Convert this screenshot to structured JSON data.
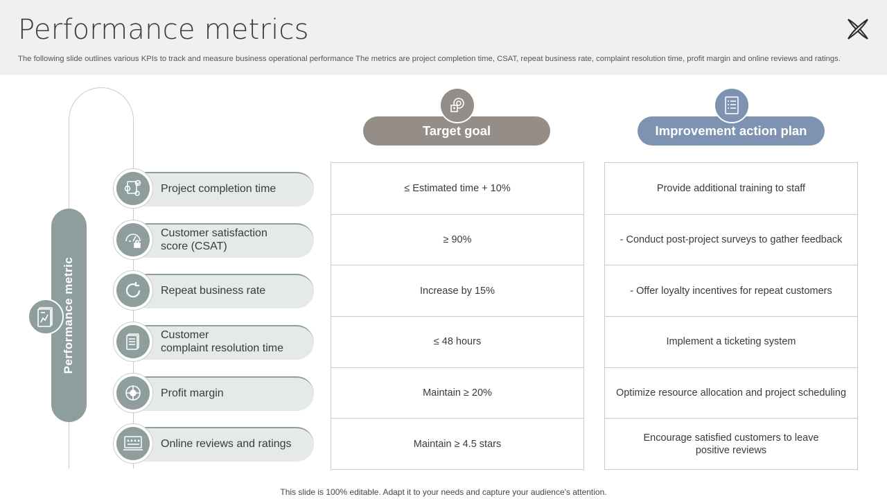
{
  "header": {
    "title": "Performance metrics",
    "subtitle": "The following slide outlines various KPIs to track and measure business operational performance The metrics are project completion time, CSAT, repeat business rate, complaint resolution time, profit margin and online reviews and ratings."
  },
  "side": {
    "label": "Performance metric",
    "icon": "chart-document-icon"
  },
  "metrics": [
    {
      "label": "Project completion time",
      "icon": "project-gears-icon"
    },
    {
      "label": "Customer satisfaction\nscore (CSAT)",
      "icon": "satisfaction-meter-icon"
    },
    {
      "label": "Repeat business rate",
      "icon": "refresh-icon"
    },
    {
      "label": "Customer\ncomplaint resolution time",
      "icon": "document-stack-icon"
    },
    {
      "label": "Profit margin",
      "icon": "profit-pie-icon"
    },
    {
      "label": "Online reviews and ratings",
      "icon": "rating-stars-icon"
    }
  ],
  "target": {
    "header": "Target goal",
    "icon": "target-goal-icon",
    "rows": [
      "≤ Estimated time + 10%",
      "≥ 90%",
      "Increase by 15%",
      "≤ 48 hours",
      "Maintain ≥ 20%",
      "Maintain ≥ 4.5 stars"
    ]
  },
  "plan": {
    "header": "Improvement action plan",
    "icon": "checklist-icon",
    "rows": [
      "Provide additional training to staff",
      "- Conduct post-project surveys to gather feedback",
      "- Offer loyalty incentives for repeat customers",
      "Implement a ticketing system",
      "Optimize resource allocation and project scheduling",
      "Encourage satisfied customers to leave positive reviews"
    ]
  },
  "footer": "This slide is 100% editable. Adapt it to your needs and capture your audience's attention.",
  "colors": {
    "sage": "#8d9e9d",
    "taupe": "#958d87",
    "slate_blue": "#7d93b1",
    "pill_bg": "#e6e9e9",
    "header_bg": "#f0f0f0"
  }
}
